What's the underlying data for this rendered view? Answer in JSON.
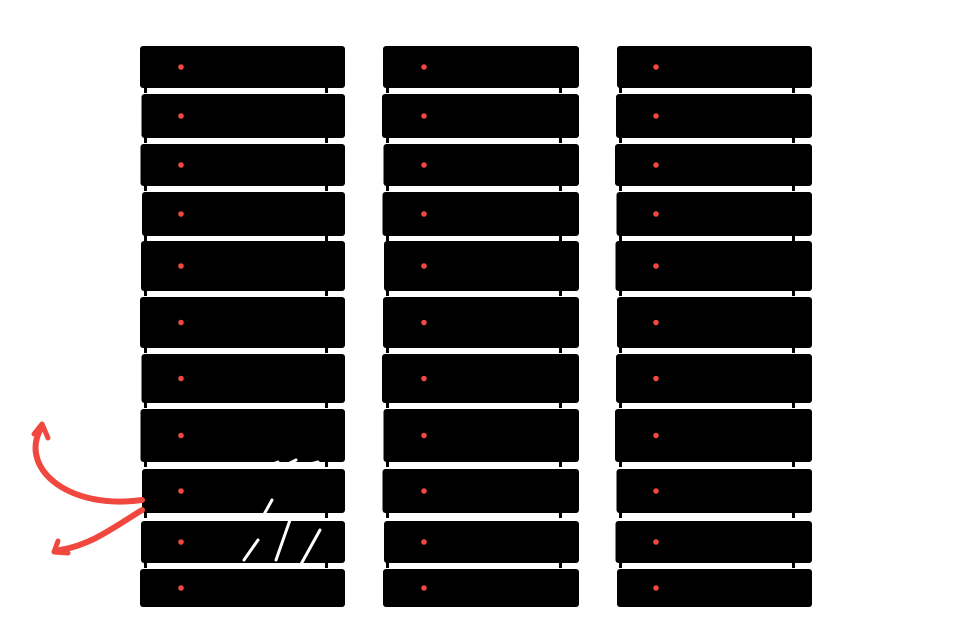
{
  "illustration": {
    "rack_count": 3,
    "units_per_rack": 11,
    "colors": {
      "background": "#ffffff",
      "unit": "#000000",
      "led": "#f0483e",
      "arrow": "#f0483e"
    },
    "icons": [
      "server-rack-icon",
      "status-led-icon",
      "curved-arrow-icon"
    ]
  }
}
